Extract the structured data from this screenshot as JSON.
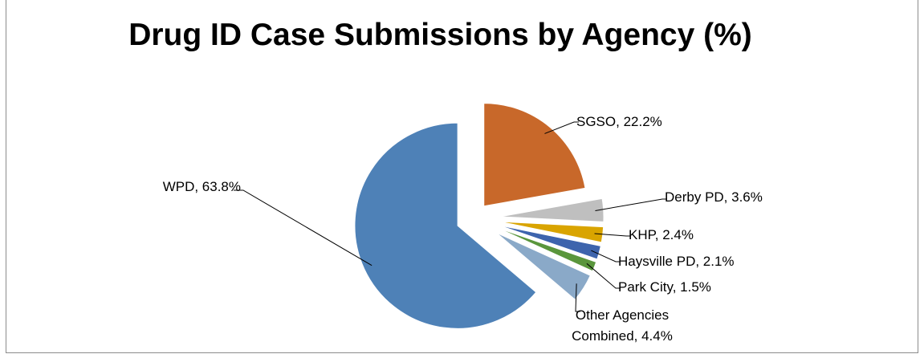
{
  "chart_data": {
    "type": "pie",
    "title": "Drug ID Case Submissions by Agency (%)",
    "categories": [
      "SGSO",
      "Derby PD",
      "KHP",
      "Haysville PD",
      "Park City",
      "Other Agencies Combined",
      "WPD"
    ],
    "values": [
      22.2,
      3.6,
      2.4,
      2.1,
      1.5,
      4.4,
      63.8
    ],
    "value_labels": [
      "SGSO, 22.2%",
      "Derby PD, 3.6%",
      "KHP, 2.4%",
      "Haysville PD, 2.1%",
      "Park City, 1.5%",
      "Other Agencies Combined, 4.4%",
      "WPD, 63.8%"
    ],
    "colors": [
      "#c8682a",
      "#bfbfbf",
      "#d9a400",
      "#3d64ad",
      "#5a963c",
      "#8aa9c8",
      "#4e81b7"
    ]
  }
}
